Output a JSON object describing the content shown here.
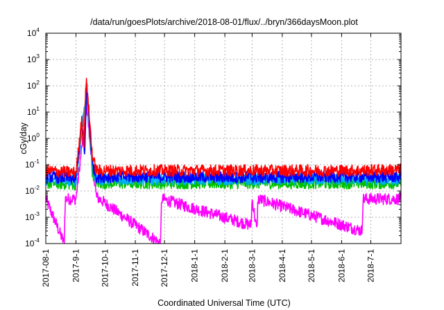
{
  "chart_data": {
    "type": "line",
    "title": "/data/run/goesPlots/archive/2018-08-01/flux/../bryn/366daysMoon.plot",
    "xlabel": "Coordinated Universal Time (UTC)",
    "ylabel": "cGy/day",
    "yscale": "log",
    "ylim": [
      0.0001,
      10000
    ],
    "xlim": [
      "2017-08-01",
      "2018-08-01"
    ],
    "grid": true,
    "legend": "none",
    "x_ticks": [
      {
        "label": "2017-08-1",
        "date": "2017-08-01"
      },
      {
        "label": "2017-9-1",
        "date": "2017-09-01"
      },
      {
        "label": "2017-10-1",
        "date": "2017-10-01"
      },
      {
        "label": "2017-11-1",
        "date": "2017-11-01"
      },
      {
        "label": "2017-12-1",
        "date": "2017-12-01"
      },
      {
        "label": "2018-1-1",
        "date": "2018-01-01"
      },
      {
        "label": "2018-2-1",
        "date": "2018-02-01"
      },
      {
        "label": "2018-3-1",
        "date": "2018-03-01"
      },
      {
        "label": "2018-4-1",
        "date": "2018-04-01"
      },
      {
        "label": "2018-5-1",
        "date": "2018-05-01"
      },
      {
        "label": "2018-6-1",
        "date": "2018-06-01"
      },
      {
        "label": "2018-7-1",
        "date": "2018-07-01"
      }
    ],
    "y_ticks": [
      {
        "base": "10",
        "exp": "-4",
        "value": 0.0001
      },
      {
        "base": "10",
        "exp": "-3",
        "value": 0.001
      },
      {
        "base": "10",
        "exp": "-2",
        "value": 0.01
      },
      {
        "base": "10",
        "exp": "-1",
        "value": 0.1
      },
      {
        "base": "10",
        "exp": "0",
        "value": 1
      },
      {
        "base": "10",
        "exp": "1",
        "value": 10
      },
      {
        "base": "10",
        "exp": "2",
        "value": 100
      },
      {
        "base": "10",
        "exp": "3",
        "value": 1000
      },
      {
        "base": "10",
        "exp": "4",
        "value": 10000
      }
    ],
    "series": [
      {
        "color": "#ff0000",
        "values": [
          [
            "2017-08-01",
            0.06
          ],
          [
            "2017-08-15",
            0.055
          ],
          [
            "2017-09-01",
            0.05
          ],
          [
            "2017-09-05",
            1.0
          ],
          [
            "2017-09-07",
            7.0
          ],
          [
            "2017-09-09",
            0.3
          ],
          [
            "2017-09-11",
            60
          ],
          [
            "2017-09-12",
            150
          ],
          [
            "2017-09-13",
            40
          ],
          [
            "2017-09-15",
            5.0
          ],
          [
            "2017-09-18",
            0.2
          ],
          [
            "2017-09-22",
            0.06
          ],
          [
            "2017-10-15",
            0.06
          ],
          [
            "2017-11-15",
            0.06
          ],
          [
            "2017-12-15",
            0.06
          ],
          [
            "2018-01-15",
            0.06
          ],
          [
            "2018-02-15",
            0.06
          ],
          [
            "2018-03-15",
            0.06
          ],
          [
            "2018-04-15",
            0.06
          ],
          [
            "2018-05-15",
            0.06
          ],
          [
            "2018-06-15",
            0.06
          ],
          [
            "2018-07-31",
            0.065
          ]
        ]
      },
      {
        "color": "#0000ff",
        "values": [
          [
            "2017-08-01",
            0.035
          ],
          [
            "2017-09-01",
            0.03
          ],
          [
            "2017-09-07",
            4.0
          ],
          [
            "2017-09-10",
            0.2
          ],
          [
            "2017-09-12",
            120
          ],
          [
            "2017-09-14",
            10
          ],
          [
            "2017-09-18",
            0.1
          ],
          [
            "2017-09-22",
            0.035
          ],
          [
            "2017-12-01",
            0.035
          ],
          [
            "2018-03-01",
            0.033
          ],
          [
            "2018-06-01",
            0.035
          ],
          [
            "2018-07-31",
            0.035
          ]
        ]
      },
      {
        "color": "#00b0ff",
        "values": [
          [
            "2017-08-01",
            0.028
          ],
          [
            "2017-09-01",
            0.025
          ],
          [
            "2017-09-12",
            90
          ],
          [
            "2017-09-18",
            0.08
          ],
          [
            "2017-09-22",
            0.028
          ],
          [
            "2018-07-31",
            0.028
          ]
        ]
      },
      {
        "color": "#00c000",
        "values": [
          [
            "2017-08-01",
            0.02
          ],
          [
            "2017-09-01",
            0.018
          ],
          [
            "2017-09-12",
            60
          ],
          [
            "2017-09-18",
            0.05
          ],
          [
            "2017-09-22",
            0.02
          ],
          [
            "2018-07-31",
            0.02
          ]
        ]
      },
      {
        "color": "#ff00ff",
        "values": [
          [
            "2017-08-01",
            0.005
          ],
          [
            "2017-08-20",
            0.0001
          ],
          [
            "2017-08-21",
            0.005
          ],
          [
            "2017-09-01",
            0.005
          ],
          [
            "2017-09-12",
            20
          ],
          [
            "2017-09-15",
            1.0
          ],
          [
            "2017-09-22",
            0.006
          ],
          [
            "2017-11-27",
            0.0001
          ],
          [
            "2017-11-28",
            0.005
          ],
          [
            "2018-02-28",
            0.0005
          ],
          [
            "2018-03-01",
            0.005
          ],
          [
            "2018-03-06",
            0.0003
          ],
          [
            "2018-03-07",
            0.005
          ],
          [
            "2018-06-22",
            0.0003
          ],
          [
            "2018-06-23",
            0.005
          ],
          [
            "2018-07-31",
            0.005
          ]
        ]
      }
    ]
  }
}
